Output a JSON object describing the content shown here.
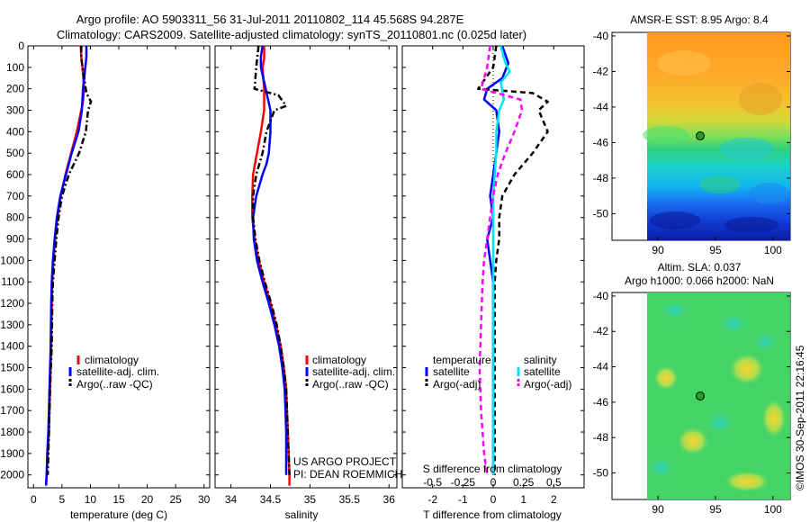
{
  "title_line1": "Argo profile: AO 5903311_56 31-Jul-2011 20110802_114 45.568S 94.287E",
  "title_line2": "Climatology: CARS2009. Satellite-adjusted climatology: synTS_20110801.nc (0.025d later)",
  "project_line1": "US ARGO PROJECT",
  "project_line2": "PI: DEAN ROEMMICH",
  "sst_title": "AMSR-E SST: 8.95 Argo: 8.4",
  "sla_line1": "Altim. SLA: 0.037",
  "sla_line2": "Argo h1000: 0.066 h2000: NaN",
  "credit": "©IMOS 30-Sep-2011 22:16:45",
  "colors": {
    "climatology": "#ff0000",
    "satellite": "#0000ff",
    "argo": "#000000",
    "sal_satellite": "#00e5ee",
    "sal_argo": "#ff00ff"
  },
  "chart_data": [
    {
      "type": "line",
      "xlabel": "temperature (deg C)",
      "ylabel": "",
      "xlim": [
        -1,
        31
      ],
      "ylim": [
        2060,
        0
      ],
      "xticks": [
        0,
        5,
        10,
        15,
        20,
        25,
        30
      ],
      "yticks": [
        0,
        100,
        200,
        300,
        400,
        500,
        600,
        700,
        800,
        900,
        1000,
        1100,
        1200,
        1300,
        1400,
        1500,
        1600,
        1700,
        1800,
        1900,
        2000
      ],
      "legend_position": "lower-center",
      "series": [
        {
          "name": "climatology",
          "color": "#ff0000",
          "dash": "solid",
          "points": [
            [
              8.3,
              0
            ],
            [
              8.4,
              50
            ],
            [
              8.6,
              100
            ],
            [
              8.9,
              200
            ],
            [
              8.7,
              260
            ],
            [
              8.4,
              300
            ],
            [
              7.6,
              400
            ],
            [
              6.6,
              500
            ],
            [
              5.6,
              600
            ],
            [
              4.8,
              700
            ],
            [
              4.2,
              800
            ],
            [
              3.8,
              900
            ],
            [
              3.5,
              1000
            ],
            [
              3.3,
              1100
            ],
            [
              3.2,
              1200
            ],
            [
              3.1,
              1400
            ],
            [
              2.9,
              1600
            ],
            [
              2.7,
              1800
            ],
            [
              2.5,
              1900
            ],
            [
              2.3,
              2000
            ],
            [
              2.2,
              2050
            ]
          ]
        },
        {
          "name": "satellite-adj. clim.",
          "color": "#0000ff",
          "dash": "solid",
          "points": [
            [
              9.3,
              0
            ],
            [
              9.3,
              50
            ],
            [
              9.1,
              100
            ],
            [
              8.7,
              200
            ],
            [
              8.5,
              300
            ],
            [
              7.9,
              400
            ],
            [
              6.7,
              500
            ],
            [
              5.7,
              600
            ],
            [
              4.7,
              700
            ],
            [
              4.1,
              800
            ],
            [
              3.7,
              900
            ],
            [
              3.4,
              1000
            ],
            [
              3.2,
              1100
            ],
            [
              3.1,
              1200
            ],
            [
              3.0,
              1400
            ],
            [
              2.8,
              1600
            ],
            [
              2.6,
              1800
            ],
            [
              2.4,
              1900
            ],
            [
              2.3,
              2000
            ],
            [
              2.2,
              2050
            ]
          ]
        },
        {
          "name": "Argo(..raw -QC)",
          "color": "#000000",
          "dash": "dashdot",
          "points": [
            [
              8.4,
              0
            ],
            [
              8.4,
              60
            ],
            [
              8.9,
              150
            ],
            [
              9.3,
              220
            ],
            [
              10.1,
              260
            ],
            [
              9.6,
              300
            ],
            [
              9.2,
              400
            ],
            [
              8.0,
              500
            ],
            [
              6.2,
              600
            ],
            [
              5.0,
              700
            ],
            [
              4.4,
              800
            ],
            [
              4.0,
              900
            ],
            [
              3.7,
              1000
            ],
            [
              3.4,
              1100
            ],
            [
              3.3,
              1200
            ],
            [
              3.2,
              1400
            ],
            [
              2.9,
              1600
            ],
            [
              2.7,
              1800
            ],
            [
              2.6,
              1900
            ],
            [
              2.5,
              2000
            ]
          ]
        }
      ]
    },
    {
      "type": "line",
      "xlabel": "salinity",
      "ylabel": "",
      "xlim": [
        33.8,
        36.1
      ],
      "ylim": [
        2060,
        0
      ],
      "xticks": [
        34,
        34.5,
        35,
        35.5,
        36
      ],
      "legend_position": "lower-center",
      "series": [
        {
          "name": "climatology",
          "color": "#ff0000",
          "dash": "solid",
          "points": [
            [
              34.42,
              0
            ],
            [
              34.42,
              60
            ],
            [
              34.4,
              100
            ],
            [
              34.42,
              200
            ],
            [
              34.42,
              300
            ],
            [
              34.38,
              400
            ],
            [
              34.33,
              500
            ],
            [
              34.28,
              600
            ],
            [
              34.27,
              700
            ],
            [
              34.27,
              800
            ],
            [
              34.3,
              900
            ],
            [
              34.35,
              1000
            ],
            [
              34.42,
              1100
            ],
            [
              34.5,
              1200
            ],
            [
              34.57,
              1300
            ],
            [
              34.63,
              1400
            ],
            [
              34.67,
              1500
            ],
            [
              34.7,
              1600
            ],
            [
              34.71,
              1700
            ],
            [
              34.72,
              1800
            ],
            [
              34.73,
              1900
            ],
            [
              34.74,
              2000
            ],
            [
              34.74,
              2050
            ]
          ]
        },
        {
          "name": "satellite-adj. clim.",
          "color": "#0000ff",
          "dash": "solid",
          "points": [
            [
              34.4,
              0
            ],
            [
              34.38,
              50
            ],
            [
              34.38,
              100
            ],
            [
              34.44,
              200
            ],
            [
              34.5,
              300
            ],
            [
              34.5,
              400
            ],
            [
              34.48,
              500
            ],
            [
              34.45,
              550
            ],
            [
              34.4,
              600
            ],
            [
              34.32,
              700
            ],
            [
              34.28,
              800
            ],
            [
              34.29,
              900
            ],
            [
              34.33,
              1000
            ],
            [
              34.4,
              1100
            ],
            [
              34.48,
              1200
            ],
            [
              34.55,
              1300
            ],
            [
              34.61,
              1400
            ],
            [
              34.65,
              1500
            ],
            [
              34.68,
              1600
            ],
            [
              34.69,
              1700
            ],
            [
              34.7,
              1800
            ],
            [
              34.7,
              1900
            ],
            [
              34.7,
              2000
            ]
          ]
        },
        {
          "name": "Argo(..raw -QC)",
          "color": "#000000",
          "dash": "dashdot",
          "points": [
            [
              34.35,
              0
            ],
            [
              34.32,
              100
            ],
            [
              34.3,
              200
            ],
            [
              34.6,
              230
            ],
            [
              34.7,
              280
            ],
            [
              34.55,
              300
            ],
            [
              34.45,
              400
            ],
            [
              34.4,
              500
            ],
            [
              34.32,
              600
            ],
            [
              34.28,
              700
            ],
            [
              34.28,
              800
            ],
            [
              34.31,
              900
            ],
            [
              34.36,
              1000
            ],
            [
              34.43,
              1100
            ],
            [
              34.51,
              1200
            ],
            [
              34.58,
              1300
            ],
            [
              34.63,
              1400
            ],
            [
              34.67,
              1500
            ],
            [
              34.7,
              1600
            ],
            [
              34.71,
              1700
            ],
            [
              34.72,
              1800
            ],
            [
              34.73,
              1900
            ],
            [
              34.74,
              2000
            ]
          ]
        }
      ]
    },
    {
      "type": "line",
      "xlabel": "T difference from climatology",
      "ylabel": "",
      "top_axis_label": "S difference from climatology",
      "xlim": [
        -3,
        3
      ],
      "ylim": [
        2060,
        0
      ],
      "xticks": [
        -2,
        -1,
        0,
        1,
        2
      ],
      "top_ticks": [
        -0.5,
        -0.25,
        0,
        0.25,
        0.5
      ],
      "top_tick_labels": [
        "-0.5",
        "-0.25",
        "0",
        "0.25",
        "0.5"
      ],
      "legend_headers": [
        "temperature",
        "salinity"
      ],
      "legend_position": "lower-center",
      "series": [
        {
          "name": "satellite",
          "group": "temperature",
          "color": "#0000ff",
          "dash": "solid",
          "points": [
            [
              0.3,
              0
            ],
            [
              0.5,
              80
            ],
            [
              0.3,
              150
            ],
            [
              -0.2,
              200
            ],
            [
              -0.3,
              250
            ],
            [
              0.1,
              300
            ],
            [
              0.2,
              400
            ],
            [
              0.1,
              500
            ],
            [
              0.0,
              600
            ],
            [
              -0.1,
              700
            ],
            [
              0.0,
              800
            ],
            [
              -0.2,
              900
            ],
            [
              -0.1,
              1000
            ],
            [
              0.0,
              1100
            ],
            [
              0.0,
              1300
            ],
            [
              0.0,
              1600
            ],
            [
              0.0,
              1800
            ],
            [
              0.0,
              2000
            ]
          ]
        },
        {
          "name": "Argo(-adj)",
          "group": "temperature",
          "color": "#000000",
          "dash": "dashed",
          "points": [
            [
              0.1,
              0
            ],
            [
              0.0,
              100
            ],
            [
              -0.5,
              200
            ],
            [
              1.3,
              220
            ],
            [
              1.8,
              260
            ],
            [
              1.5,
              300
            ],
            [
              1.8,
              400
            ],
            [
              1.3,
              500
            ],
            [
              0.7,
              600
            ],
            [
              0.3,
              700
            ],
            [
              0.2,
              800
            ],
            [
              0.2,
              900
            ],
            [
              0.1,
              1000
            ],
            [
              0.05,
              1100
            ],
            [
              0.05,
              1300
            ],
            [
              0.05,
              1600
            ],
            [
              0.05,
              1800
            ],
            [
              0.05,
              2000
            ]
          ]
        },
        {
          "name": "satellite",
          "group": "salinity",
          "color": "#00e5ee",
          "dash": "solid",
          "points": [
            [
              0.25,
              0
            ],
            [
              0.4,
              80
            ],
            [
              0.55,
              120
            ],
            [
              0.25,
              170
            ],
            [
              0.35,
              250
            ],
            [
              0.2,
              300
            ],
            [
              0.1,
              400
            ],
            [
              0.1,
              500
            ],
            [
              0.0,
              700
            ],
            [
              0.0,
              900
            ],
            [
              0.0,
              1100
            ],
            [
              0.0,
              1300
            ],
            [
              0.0,
              1500
            ],
            [
              0.0,
              1700
            ],
            [
              0.0,
              1900
            ],
            [
              0.0,
              2000
            ]
          ]
        },
        {
          "name": "Argo(-adj)",
          "group": "salinity",
          "color": "#ff00ff",
          "dash": "dashed",
          "points": [
            [
              -0.1,
              0
            ],
            [
              -0.2,
              100
            ],
            [
              -0.4,
              200
            ],
            [
              0.9,
              250
            ],
            [
              0.95,
              300
            ],
            [
              0.7,
              400
            ],
            [
              0.4,
              500
            ],
            [
              0.15,
              600
            ],
            [
              0.0,
              700
            ],
            [
              -0.1,
              800
            ],
            [
              -0.2,
              900
            ],
            [
              -0.3,
              1000
            ],
            [
              -0.35,
              1100
            ],
            [
              -0.4,
              1300
            ],
            [
              -0.45,
              1500
            ],
            [
              -0.4,
              1700
            ],
            [
              -0.3,
              1900
            ],
            [
              -0.2,
              2000
            ]
          ]
        }
      ]
    },
    {
      "type": "heatmap",
      "title": "AMSR-E SST: 8.95 Argo: 8.4",
      "xlim": [
        86,
        101.5
      ],
      "ylim": [
        -51.5,
        -39.8
      ],
      "xticks": [
        90,
        95,
        100
      ],
      "yticks": [
        -40,
        -42,
        -44,
        -46,
        -48,
        -50
      ],
      "ytick_labels": [
        "-40",
        "-42",
        "-44",
        "-46",
        "-48",
        "-50"
      ],
      "data_xlim": [
        90,
        101.5
      ],
      "marker": [
        94.3,
        -45.6
      ]
    },
    {
      "type": "heatmap",
      "title": "Altim. SLA: 0.037",
      "xlim": [
        86,
        101.5
      ],
      "ylim": [
        -51.5,
        -39.8
      ],
      "xticks": [
        90,
        95,
        100
      ],
      "yticks": [
        -40,
        -42,
        -44,
        -46,
        -48,
        -50
      ],
      "ytick_labels": [
        "-40",
        "-42",
        "-44",
        "-46",
        "-48",
        "-50"
      ],
      "data_xlim": [
        90,
        101.5
      ],
      "marker": [
        94.3,
        -45.6
      ]
    }
  ]
}
